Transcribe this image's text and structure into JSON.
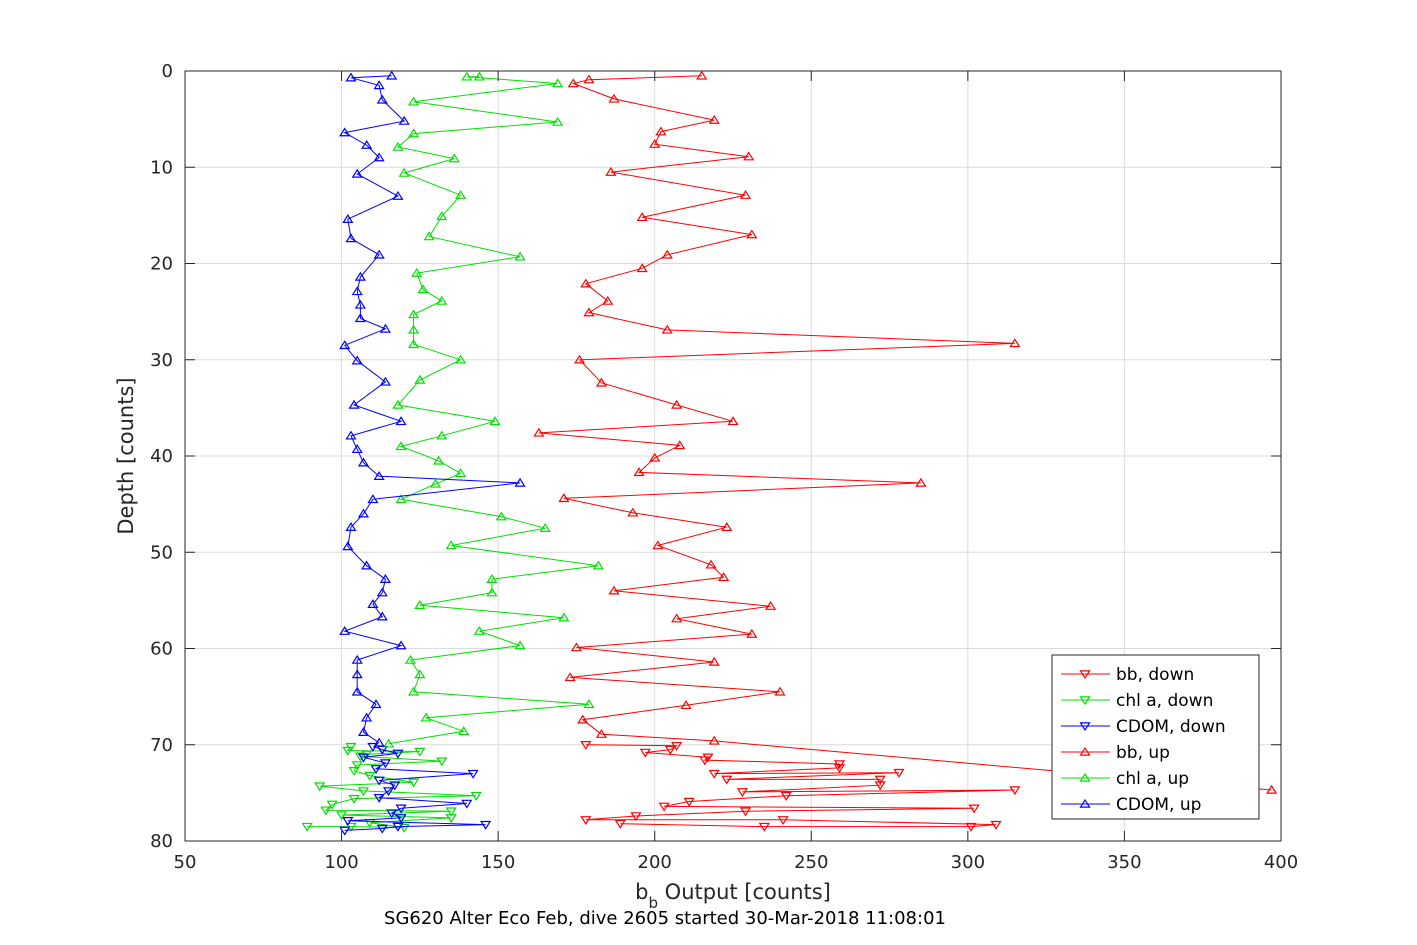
{
  "chart_data": {
    "type": "line",
    "caption": "SG620 Alter Eco Feb, dive 2605 started 30-Mar-2018 11:08:01",
    "xlabel_main": "b",
    "xlabel_sub": "b",
    "xlabel_rest": " Output [counts]",
    "ylabel": "Depth [counts]",
    "xlim": [
      50,
      400
    ],
    "ylim": [
      0,
      80
    ],
    "y_reversed": true,
    "grid": true,
    "legend_position": "bottom-right",
    "x_ticks": [
      "50",
      "100",
      "150",
      "200",
      "250",
      "300",
      "350",
      "400"
    ],
    "y_ticks": [
      "0",
      "10",
      "20",
      "30",
      "40",
      "50",
      "60",
      "70",
      "80"
    ],
    "series": [
      {
        "name": "bb, down",
        "color": "#ff0000",
        "marker": "down",
        "points": [
          [
            178,
            70.0
          ],
          [
            207,
            70.1
          ],
          [
            205,
            70.5
          ],
          [
            197,
            70.8
          ],
          [
            217,
            71.3
          ],
          [
            216,
            71.6
          ],
          [
            259,
            72.0
          ],
          [
            259,
            72.4
          ],
          [
            219,
            73.0
          ],
          [
            278,
            72.9
          ],
          [
            223,
            73.6
          ],
          [
            272,
            73.6
          ],
          [
            272,
            74.2
          ],
          [
            228,
            74.9
          ],
          [
            315,
            74.7
          ],
          [
            242,
            75.3
          ],
          [
            211,
            75.9
          ],
          [
            203,
            76.4
          ],
          [
            302,
            76.6
          ],
          [
            229,
            76.9
          ],
          [
            194,
            77.4
          ],
          [
            178,
            77.8
          ],
          [
            241,
            77.8
          ],
          [
            309,
            78.3
          ],
          [
            301,
            78.5
          ],
          [
            235,
            78.5
          ],
          [
            189,
            78.2
          ]
        ]
      },
      {
        "name": "chl a, down",
        "color": "#00e000",
        "marker": "down",
        "points": [
          [
            103,
            70.2
          ],
          [
            102,
            70.6
          ],
          [
            125,
            70.7
          ],
          [
            108,
            71.0
          ],
          [
            106,
            71.2
          ],
          [
            132,
            71.7
          ],
          [
            105,
            72.1
          ],
          [
            104,
            72.7
          ],
          [
            109,
            73.2
          ],
          [
            123,
            73.9
          ],
          [
            93,
            74.3
          ],
          [
            107,
            74.8
          ],
          [
            143,
            75.3
          ],
          [
            104,
            75.6
          ],
          [
            97,
            76.2
          ],
          [
            95,
            76.8
          ],
          [
            135,
            76.9
          ],
          [
            100,
            77.3
          ],
          [
            135,
            77.6
          ],
          [
            109,
            78.1
          ],
          [
            120,
            78.6
          ],
          [
            103,
            78.5
          ],
          [
            89,
            78.5
          ]
        ]
      },
      {
        "name": "CDOM, down",
        "color": "#0000ff",
        "marker": "down",
        "points": [
          [
            110,
            70.2
          ],
          [
            113,
            70.5
          ],
          [
            118,
            70.9
          ],
          [
            107,
            71.3
          ],
          [
            114,
            71.9
          ],
          [
            111,
            72.5
          ],
          [
            142,
            73.0
          ],
          [
            112,
            73.7
          ],
          [
            117,
            74.2
          ],
          [
            115,
            74.8
          ],
          [
            112,
            75.5
          ],
          [
            140,
            76.1
          ],
          [
            119,
            76.6
          ],
          [
            116,
            77.1
          ],
          [
            119,
            77.6
          ],
          [
            102,
            77.9
          ],
          [
            146,
            78.3
          ],
          [
            118,
            78.5
          ],
          [
            113,
            78.7
          ],
          [
            101,
            78.9
          ]
        ]
      },
      {
        "name": "bb, up",
        "color": "#ff0000",
        "marker": "up",
        "points": [
          [
            215,
            0.5
          ],
          [
            179,
            0.9
          ],
          [
            174,
            1.3
          ],
          [
            187,
            2.9
          ],
          [
            219,
            5.1
          ],
          [
            202,
            6.3
          ],
          [
            200,
            7.6
          ],
          [
            230,
            8.9
          ],
          [
            186,
            10.5
          ],
          [
            229,
            12.9
          ],
          [
            196,
            15.2
          ],
          [
            231,
            17.0
          ],
          [
            204,
            19.1
          ],
          [
            196,
            20.5
          ],
          [
            178,
            22.1
          ],
          [
            185,
            23.9
          ],
          [
            179,
            25.1
          ],
          [
            204,
            26.9
          ],
          [
            315,
            28.3
          ],
          [
            176,
            30.0
          ],
          [
            183,
            32.4
          ],
          [
            207,
            34.7
          ],
          [
            225,
            36.4
          ],
          [
            163,
            37.6
          ],
          [
            208,
            38.9
          ],
          [
            200,
            40.2
          ],
          [
            195,
            41.7
          ],
          [
            285,
            42.8
          ],
          [
            171,
            44.4
          ],
          [
            193,
            45.9
          ],
          [
            223,
            47.4
          ],
          [
            201,
            49.3
          ],
          [
            218,
            51.3
          ],
          [
            222,
            52.6
          ],
          [
            187,
            54.0
          ],
          [
            237,
            55.6
          ],
          [
            207,
            56.9
          ],
          [
            231,
            58.5
          ],
          [
            175,
            59.9
          ],
          [
            219,
            61.4
          ],
          [
            173,
            63.0
          ],
          [
            240,
            64.5
          ],
          [
            210,
            65.9
          ],
          [
            177,
            67.4
          ],
          [
            183,
            68.9
          ],
          [
            219,
            69.6
          ],
          [
            397,
            74.7
          ]
        ]
      },
      {
        "name": "chl a, up",
        "color": "#00e000",
        "marker": "up",
        "points": [
          [
            144,
            0.6
          ],
          [
            140,
            0.6
          ],
          [
            169,
            1.3
          ],
          [
            123,
            3.2
          ],
          [
            169,
            5.3
          ],
          [
            123,
            6.5
          ],
          [
            118,
            7.9
          ],
          [
            136,
            9.1
          ],
          [
            120,
            10.6
          ],
          [
            138,
            12.9
          ],
          [
            132,
            15.1
          ],
          [
            128,
            17.2
          ],
          [
            157,
            19.3
          ],
          [
            124,
            21.0
          ],
          [
            126,
            22.7
          ],
          [
            132,
            23.9
          ],
          [
            123,
            25.3
          ],
          [
            123,
            26.9
          ],
          [
            123,
            28.4
          ],
          [
            138,
            30.0
          ],
          [
            125,
            32.1
          ],
          [
            118,
            34.7
          ],
          [
            149,
            36.4
          ],
          [
            132,
            37.9
          ],
          [
            119,
            39.0
          ],
          [
            131,
            40.5
          ],
          [
            138,
            41.8
          ],
          [
            130,
            42.9
          ],
          [
            119,
            44.5
          ],
          [
            151,
            46.3
          ],
          [
            165,
            47.5
          ],
          [
            135,
            49.3
          ],
          [
            182,
            51.4
          ],
          [
            148,
            52.8
          ],
          [
            148,
            54.2
          ],
          [
            125,
            55.5
          ],
          [
            171,
            56.8
          ],
          [
            144,
            58.2
          ],
          [
            157,
            59.7
          ],
          [
            122,
            61.2
          ],
          [
            125,
            62.7
          ],
          [
            123,
            64.5
          ],
          [
            179,
            65.8
          ],
          [
            127,
            67.2
          ],
          [
            139,
            68.6
          ],
          [
            115,
            69.9
          ]
        ]
      },
      {
        "name": "CDOM, up",
        "color": "#0000ff",
        "marker": "up",
        "points": [
          [
            116,
            0.5
          ],
          [
            103,
            0.7
          ],
          [
            112,
            1.5
          ],
          [
            113,
            3.0
          ],
          [
            120,
            5.2
          ],
          [
            101,
            6.4
          ],
          [
            108,
            7.7
          ],
          [
            112,
            9.0
          ],
          [
            105,
            10.7
          ],
          [
            118,
            13.0
          ],
          [
            102,
            15.4
          ],
          [
            103,
            17.4
          ],
          [
            112,
            19.1
          ],
          [
            106,
            21.4
          ],
          [
            105,
            22.9
          ],
          [
            106,
            24.3
          ],
          [
            106,
            25.7
          ],
          [
            114,
            26.8
          ],
          [
            101,
            28.5
          ],
          [
            105,
            30.1
          ],
          [
            114,
            32.3
          ],
          [
            104,
            34.7
          ],
          [
            119,
            36.4
          ],
          [
            103,
            37.9
          ],
          [
            105,
            39.3
          ],
          [
            107,
            40.7
          ],
          [
            112,
            42.1
          ],
          [
            157,
            42.8
          ],
          [
            110,
            44.5
          ],
          [
            107,
            46.0
          ],
          [
            103,
            47.4
          ],
          [
            102,
            49.4
          ],
          [
            108,
            51.4
          ],
          [
            114,
            52.8
          ],
          [
            113,
            54.2
          ],
          [
            110,
            55.4
          ],
          [
            113,
            56.7
          ],
          [
            101,
            58.2
          ],
          [
            119,
            59.7
          ],
          [
            105,
            61.2
          ],
          [
            105,
            62.7
          ],
          [
            105,
            64.5
          ],
          [
            111,
            65.8
          ],
          [
            108,
            67.2
          ],
          [
            107,
            68.7
          ],
          [
            112,
            69.8
          ]
        ]
      }
    ]
  }
}
